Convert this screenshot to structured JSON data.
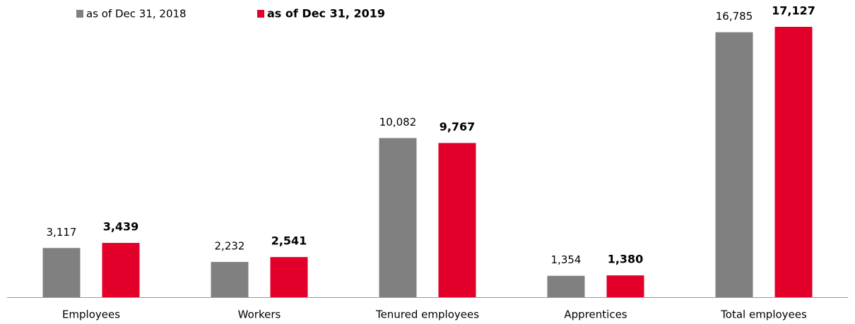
{
  "chart_data": {
    "type": "bar",
    "categories": [
      "Employees",
      "Workers",
      "Tenured employees",
      "Apprentices",
      "Total employees"
    ],
    "series": [
      {
        "name": "as of Dec 31, 2018",
        "color": "#808080",
        "values": [
          3117,
          2232,
          10082,
          1354,
          16785
        ],
        "value_labels": [
          "3,117",
          "2,232",
          "10,082",
          "1,354",
          "16,785"
        ]
      },
      {
        "name": "as of Dec 31, 2019",
        "color": "#e2002a",
        "values": [
          3439,
          2541,
          9767,
          1380,
          17127
        ],
        "value_labels": [
          "3,439",
          "2,541",
          "9,767",
          "1,380",
          "17,127"
        ]
      }
    ]
  }
}
